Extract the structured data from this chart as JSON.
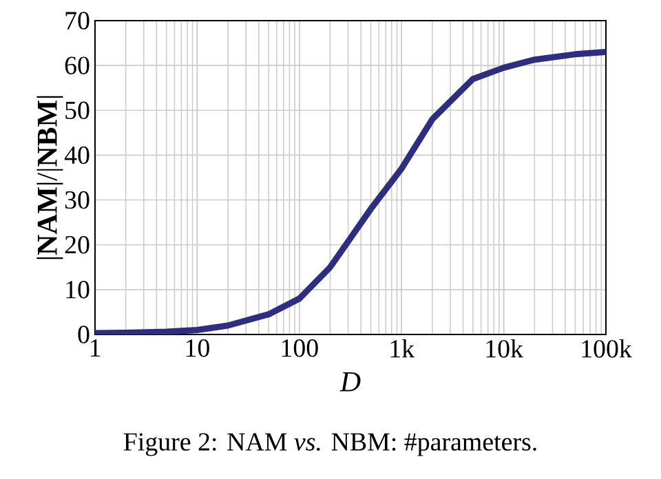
{
  "chart_data": {
    "type": "line",
    "xlabel": "D",
    "ylabel": "|**NAM**|/|**NBM**|",
    "annotations": [
      "Figure 2:  NAM *vs.* NBM: #parameters."
    ],
    "log": "x",
    "grid": true,
    "marker": "none",
    "line_style": "solid",
    "xlim": [
      1,
      100000
    ],
    "ylim": [
      0,
      70
    ],
    "xticks": [
      1,
      10,
      100,
      {
        "value": 1000,
        "label": "1k"
      },
      {
        "value": 10000,
        "label": "10k"
      },
      {
        "value": 100000,
        "label": "100k"
      }
    ],
    "yticks": [
      0,
      10,
      20,
      30,
      40,
      50,
      60,
      70
    ],
    "x": [
      1,
      2,
      5,
      10,
      20,
      50,
      100,
      200,
      500,
      1000,
      2000,
      5000,
      10000,
      20000,
      50000,
      100000
    ],
    "series": [
      {
        "color": "#2e2e80",
        "values": [
          0.3,
          0.4,
          0.6,
          1,
          2,
          4.5,
          8,
          15,
          28,
          37,
          48,
          57,
          59.5,
          61.3,
          62.5,
          63
        ]
      }
    ]
  }
}
